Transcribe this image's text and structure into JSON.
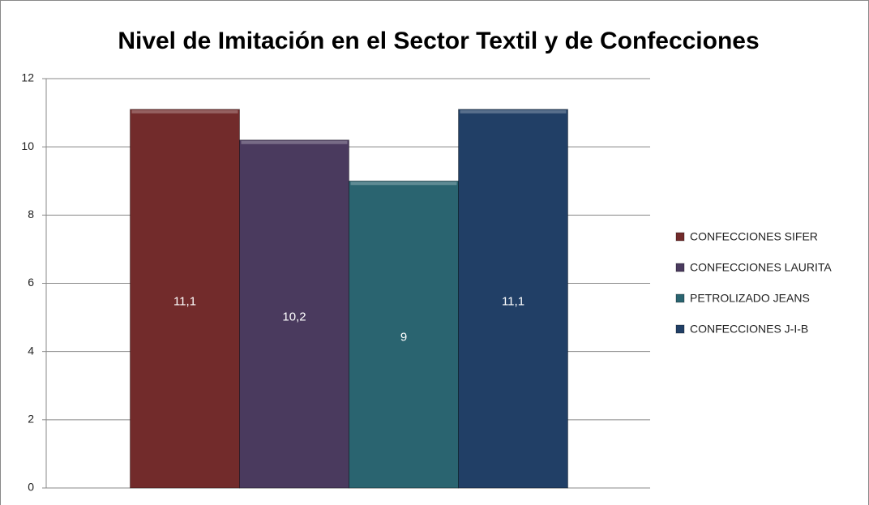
{
  "chart_data": {
    "type": "bar",
    "title": "Nivel de Imitación en el Sector Textil y de Confecciones",
    "categories": [
      null
    ],
    "series": [
      {
        "name": "CONFECCIONES SIFER",
        "color": "#722b2b",
        "values": [
          11.1
        ],
        "value_labels": [
          "11,1"
        ]
      },
      {
        "name": "CONFECCIONES LAURITA",
        "color": "#4a3a5e",
        "values": [
          10.2
        ],
        "value_labels": [
          "10,2"
        ]
      },
      {
        "name": "PETROLIZADO JEANS",
        "color": "#2a6470",
        "values": [
          9
        ],
        "value_labels": [
          "9"
        ]
      },
      {
        "name": "CONFECCIONES J-I-B",
        "color": "#213f66",
        "values": [
          11.1
        ],
        "value_labels": [
          "11,1"
        ]
      }
    ],
    "ylim": [
      0,
      12
    ],
    "yticks": [
      0,
      2,
      4,
      6,
      8,
      10,
      12
    ],
    "grid": true,
    "legend": "right"
  }
}
